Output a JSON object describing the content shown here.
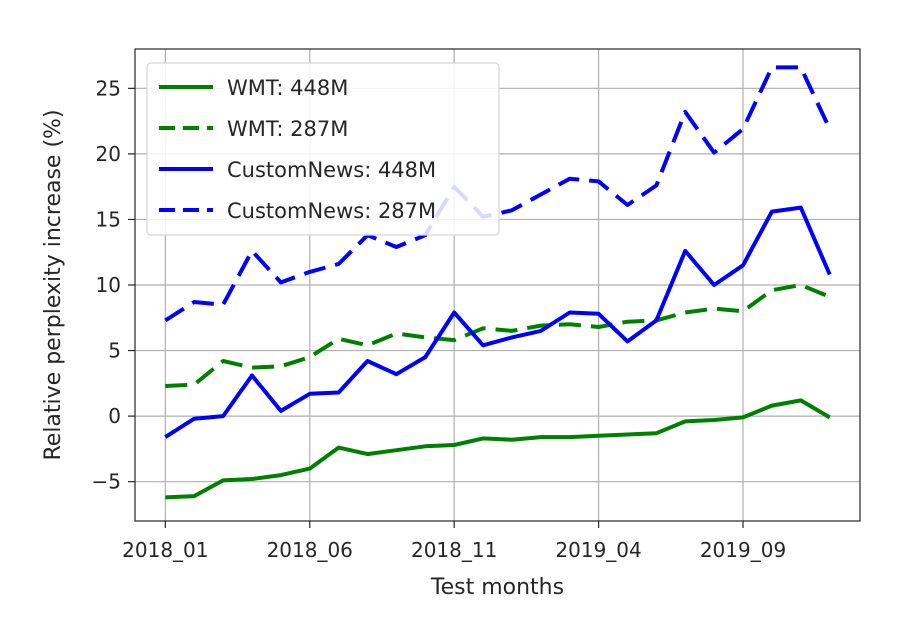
{
  "chart_data": {
    "type": "line",
    "title": "",
    "xlabel": "Test months",
    "ylabel": "Relative perplexity increase (%)",
    "x_tick_labels": [
      "2018_01",
      "2018_06",
      "2018_11",
      "2019_04",
      "2019_09"
    ],
    "x_tick_month_index": [
      0,
      5,
      10,
      15,
      20
    ],
    "y_ticks": [
      -5,
      0,
      5,
      10,
      15,
      20,
      25
    ],
    "y_tick_labels": [
      "−5",
      "0",
      "5",
      "10",
      "15",
      "20",
      "25"
    ],
    "xlim": [
      -1.05,
      24.05
    ],
    "ylim": [
      -8,
      28
    ],
    "grid": true,
    "legend_placement": "upper-left",
    "x": [
      0,
      1,
      2,
      3,
      4,
      5,
      6,
      7,
      8,
      9,
      10,
      11,
      12,
      13,
      14,
      15,
      16,
      17,
      18,
      19,
      20,
      21,
      22,
      23
    ],
    "series": [
      {
        "name": "WMT: 448M",
        "color": "#008000",
        "dash": "solid",
        "values": [
          -6.2,
          -6.1,
          -4.9,
          -4.8,
          -4.5,
          -4.0,
          -2.4,
          -2.9,
          -2.6,
          -2.3,
          -2.2,
          -1.7,
          -1.8,
          -1.6,
          -1.6,
          -1.5,
          -1.4,
          -1.3,
          -0.4,
          -0.3,
          -0.1,
          0.8,
          1.2,
          -0.1
        ]
      },
      {
        "name": "WMT: 287M",
        "color": "#008000",
        "dash": "dashed",
        "values": [
          2.3,
          2.4,
          4.2,
          3.7,
          3.8,
          4.5,
          5.9,
          5.4,
          6.3,
          6.0,
          5.8,
          6.7,
          6.5,
          6.9,
          7.0,
          6.8,
          7.2,
          7.3,
          7.9,
          8.2,
          8.0,
          9.6,
          10.0,
          9.1
        ]
      },
      {
        "name": "CustomNews: 448M",
        "color": "#0000ff",
        "dash": "solid",
        "values": [
          -1.6,
          -0.2,
          0.0,
          3.1,
          0.4,
          1.7,
          1.8,
          4.2,
          3.2,
          4.5,
          7.9,
          5.4,
          6.0,
          6.5,
          7.9,
          7.8,
          5.7,
          7.3,
          12.6,
          10.0,
          11.5,
          15.6,
          15.9,
          10.8
        ]
      },
      {
        "name": "CustomNews: 287M",
        "color": "#0000ff",
        "dash": "dashed",
        "values": [
          7.3,
          8.7,
          8.5,
          12.6,
          10.2,
          11.0,
          11.6,
          13.8,
          12.9,
          13.8,
          17.5,
          15.2,
          15.7,
          16.9,
          18.1,
          17.9,
          16.1,
          17.6,
          23.2,
          20.1,
          21.9,
          26.6,
          26.6,
          21.9
        ]
      }
    ]
  }
}
